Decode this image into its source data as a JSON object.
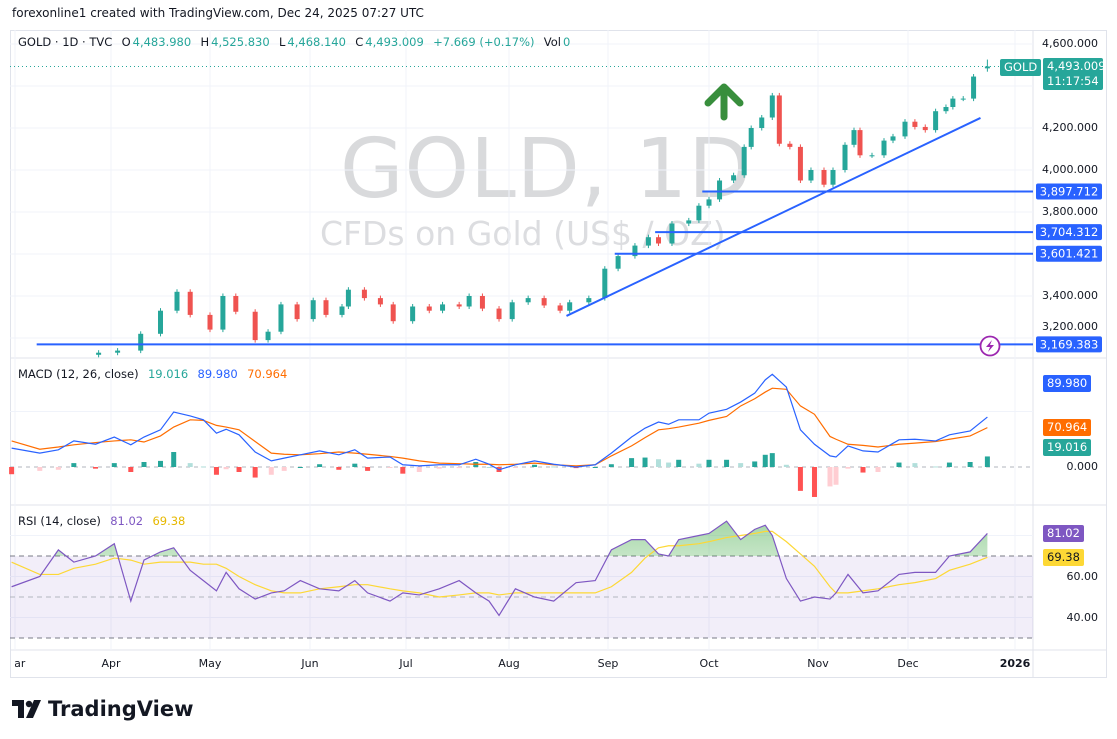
{
  "credit": "forexonline1 created with TradingView.com, Dec 24, 2025 07:27 UTC",
  "legend": {
    "symbol": "GOLD · 1D · TVC",
    "o_label": "O",
    "o": "4,483.980",
    "h_label": "H",
    "h": "4,525.830",
    "l_label": "L",
    "l": "4,468.140",
    "c_label": "C",
    "c": "4,493.009",
    "change": "+7.669 (+0.17%)",
    "vol_label": "Vol",
    "vol": "0"
  },
  "watermark": {
    "title": "GOLD, 1D",
    "subtitle": "CFDs on Gold (US$ / OZ)"
  },
  "price_tag": {
    "symbol": "GOLD",
    "price": "4,493.009",
    "countdown": "11:17:54"
  },
  "colors": {
    "up": "#26a69a",
    "down": "#ef5350",
    "drawing": "#2962ff",
    "macd": "#2962ff",
    "signal": "#ff6d00",
    "rsi": "#7e57c2",
    "rsi_ma": "#fdd835",
    "arrow": "#388e3c",
    "alert": "#9c27b0"
  },
  "icons": {
    "arrow": "up-arrow-icon",
    "alert": "lightning-alert-icon",
    "logo": "tradingview-logo-icon"
  },
  "footer": {
    "brand": "TradingView"
  },
  "chart_data": [
    {
      "type": "candlestick",
      "title": "GOLD · 1D · TVC",
      "price_axis_ticks": [
        "4,600.000",
        "4,200.000",
        "4,000.000",
        "3,800.000",
        "3,400.000",
        "3,200.000"
      ],
      "x_tick_labels": [
        "Mar",
        "Apr",
        "May",
        "Jun",
        "Jul",
        "Aug",
        "Sep",
        "Oct",
        "Nov",
        "Dec",
        "2026"
      ],
      "ylim": [
        3150,
        4620
      ],
      "closes": [
        [
          "2025-03-28",
          3130
        ],
        [
          "2025-04-03",
          3140
        ],
        [
          "2025-04-10",
          3220
        ],
        [
          "2025-04-16",
          3330
        ],
        [
          "2025-04-21",
          3420
        ],
        [
          "2025-04-25",
          3310
        ],
        [
          "2025-05-01",
          3240
        ],
        [
          "2025-05-05",
          3400
        ],
        [
          "2025-05-09",
          3325
        ],
        [
          "2025-05-15",
          3190
        ],
        [
          "2025-05-19",
          3230
        ],
        [
          "2025-05-23",
          3360
        ],
        [
          "2025-05-28",
          3290
        ],
        [
          "2025-06-02",
          3380
        ],
        [
          "2025-06-06",
          3310
        ],
        [
          "2025-06-11",
          3350
        ],
        [
          "2025-06-13",
          3430
        ],
        [
          "2025-06-18",
          3390
        ],
        [
          "2025-06-23",
          3360
        ],
        [
          "2025-06-27",
          3280
        ],
        [
          "2025-07-03",
          3350
        ],
        [
          "2025-07-08",
          3330
        ],
        [
          "2025-07-12",
          3360
        ],
        [
          "2025-07-17",
          3350
        ],
        [
          "2025-07-20",
          3400
        ],
        [
          "2025-07-24",
          3340
        ],
        [
          "2025-07-29",
          3290
        ],
        [
          "2025-08-02",
          3370
        ],
        [
          "2025-08-07",
          3390
        ],
        [
          "2025-08-12",
          3355
        ],
        [
          "2025-08-17",
          3330
        ],
        [
          "2025-08-20",
          3370
        ],
        [
          "2025-08-26",
          3390
        ],
        [
          "2025-08-31",
          3530
        ],
        [
          "2025-09-04",
          3590
        ],
        [
          "2025-09-09",
          3640
        ],
        [
          "2025-09-13",
          3680
        ],
        [
          "2025-09-16",
          3650
        ],
        [
          "2025-09-20",
          3745
        ],
        [
          "2025-09-25",
          3760
        ],
        [
          "2025-09-28",
          3830
        ],
        [
          "2025-10-01",
          3860
        ],
        [
          "2025-10-04",
          3950
        ],
        [
          "2025-10-08",
          3975
        ],
        [
          "2025-10-11",
          4110
        ],
        [
          "2025-10-13",
          4200
        ],
        [
          "2025-10-16",
          4250
        ],
        [
          "2025-10-19",
          4355
        ],
        [
          "2025-10-21",
          4125
        ],
        [
          "2025-10-24",
          4110
        ],
        [
          "2025-10-27",
          3950
        ],
        [
          "2025-10-30",
          4000
        ],
        [
          "2025-11-03",
          3930
        ],
        [
          "2025-11-06",
          4000
        ],
        [
          "2025-11-10",
          4120
        ],
        [
          "2025-11-13",
          4190
        ],
        [
          "2025-11-15",
          4070
        ],
        [
          "2025-11-19",
          4070
        ],
        [
          "2025-11-23",
          4140
        ],
        [
          "2025-11-26",
          4160
        ],
        [
          "2025-11-30",
          4230
        ],
        [
          "2025-12-03",
          4205
        ],
        [
          "2025-12-06",
          4190
        ],
        [
          "2025-12-09",
          4280
        ],
        [
          "2025-12-12",
          4300
        ],
        [
          "2025-12-14",
          4340
        ],
        [
          "2025-12-17",
          4340
        ],
        [
          "2025-12-20",
          4445
        ],
        [
          "2025-12-24",
          4493.009
        ]
      ],
      "last": {
        "open": 4483.98,
        "high": 4525.83,
        "low": 4468.14,
        "close": 4493.009,
        "change": 7.669,
        "change_pct": 0.17
      },
      "horizontal_levels": [
        {
          "price": 3897.712,
          "label": "3,897.712",
          "from": "2025-09-29"
        },
        {
          "price": 3704.312,
          "label": "3,704.312",
          "from": "2025-09-15"
        },
        {
          "price": 3601.421,
          "label": "3,601.421",
          "from": "2025-09-03"
        },
        {
          "price": 3169.383,
          "label": "3,169.383",
          "from": "2025-03-08"
        }
      ],
      "trendline": {
        "from": [
          "2025-08-19",
          3305
        ],
        "to": [
          "2025-12-22",
          4248
        ]
      },
      "arrow_annotation": {
        "date": "2025-10-05",
        "direction": "up"
      }
    },
    {
      "type": "line",
      "title": "MACD (12, 26, close)",
      "values_label": {
        "histogram": "19.016",
        "macd": "89.980",
        "signal": "70.964"
      },
      "y_tick_labels": [
        "0.000"
      ],
      "dates": [
        "2025-02-28",
        "2025-03-09",
        "2025-03-15",
        "2025-03-20",
        "2025-03-27",
        "2025-04-02",
        "2025-04-07",
        "2025-04-11",
        "2025-04-16",
        "2025-04-20",
        "2025-04-25",
        "2025-04-29",
        "2025-05-03",
        "2025-05-06",
        "2025-05-10",
        "2025-05-15",
        "2025-05-20",
        "2025-05-24",
        "2025-05-29",
        "2025-06-04",
        "2025-06-10",
        "2025-06-15",
        "2025-06-19",
        "2025-06-26",
        "2025-06-30",
        "2025-07-05",
        "2025-07-11",
        "2025-07-17",
        "2025-07-22",
        "2025-07-26",
        "2025-07-29",
        "2025-08-03",
        "2025-08-09",
        "2025-08-15",
        "2025-08-22",
        "2025-08-28",
        "2025-09-02",
        "2025-09-08",
        "2025-09-12",
        "2025-09-16",
        "2025-09-19",
        "2025-09-22",
        "2025-09-28",
        "2025-10-01",
        "2025-10-06",
        "2025-10-10",
        "2025-10-14",
        "2025-10-17",
        "2025-10-19",
        "2025-10-23",
        "2025-10-27",
        "2025-10-31",
        "2025-11-05",
        "2025-11-07",
        "2025-11-11",
        "2025-11-16",
        "2025-11-21",
        "2025-11-28",
        "2025-12-03",
        "2025-12-09",
        "2025-12-13",
        "2025-12-19",
        "2025-12-24"
      ],
      "macd": [
        34,
        25,
        31,
        47,
        41,
        54,
        40,
        54,
        67,
        99,
        92,
        85,
        61,
        68,
        58,
        27,
        11,
        16,
        22,
        29,
        22,
        31,
        16,
        18,
        4,
        2,
        4,
        4,
        14,
        5,
        -5,
        4,
        11,
        5,
        0,
        4,
        25,
        54,
        70,
        81,
        77,
        85,
        85,
        97,
        104,
        117,
        133,
        157,
        167,
        144,
        67,
        41,
        20,
        18,
        38,
        29,
        27,
        49,
        50,
        47,
        58,
        65,
        89.98
      ],
      "signal": [
        47,
        32,
        36,
        40,
        44,
        47,
        49,
        45,
        56,
        72,
        85,
        84,
        75,
        72,
        67,
        46,
        25,
        23,
        22,
        24,
        27,
        25,
        23,
        19,
        16,
        11,
        7,
        6,
        5,
        5,
        4,
        5,
        7,
        4,
        2,
        4,
        20,
        38,
        53,
        67,
        69,
        72,
        79,
        84,
        91,
        110,
        123,
        135,
        142,
        140,
        110,
        95,
        55,
        50,
        41,
        39,
        36,
        41,
        43,
        46,
        50,
        56,
        70.964
      ]
    },
    {
      "type": "line",
      "title": "RSI (14, close)",
      "values_label": {
        "rsi": "81.02",
        "ma": "69.38"
      },
      "y_tick_labels": [
        "60.00",
        "40.00"
      ],
      "bands": [
        70,
        50,
        30
      ],
      "dates_ref": "same as MACD dates",
      "rsi": [
        55,
        60,
        73,
        67,
        70,
        76,
        48,
        68,
        72,
        74,
        63,
        58,
        53,
        62,
        54,
        49,
        52,
        53,
        58,
        54,
        53,
        58,
        52,
        48,
        52,
        51,
        54,
        58,
        52,
        48,
        41,
        54,
        50,
        48,
        57,
        58,
        73,
        78,
        78,
        71,
        70,
        78,
        80,
        81,
        87,
        78,
        83,
        85,
        80,
        59,
        48,
        50,
        49,
        52,
        61,
        52,
        53,
        61,
        62,
        62,
        70,
        72,
        81.02
      ],
      "ma": [
        67,
        61,
        61,
        64,
        66,
        69,
        68,
        66,
        67,
        67,
        67,
        66,
        66,
        64,
        60,
        56,
        53,
        52,
        52,
        54,
        55,
        56,
        56,
        54,
        53,
        52,
        50,
        51,
        52,
        52,
        51,
        52,
        52,
        52,
        52,
        52,
        55,
        62,
        69,
        74,
        75,
        75,
        76,
        77,
        79,
        80,
        81,
        82,
        82,
        77,
        71,
        65,
        55,
        52,
        52,
        53,
        54,
        56,
        57,
        59,
        63,
        66,
        69.38
      ]
    }
  ]
}
